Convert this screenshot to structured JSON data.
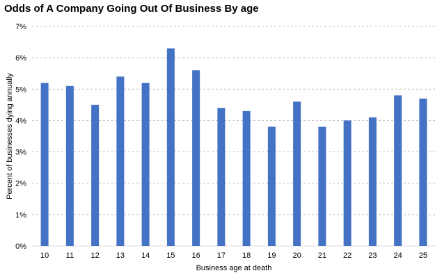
{
  "chart_data": {
    "type": "bar",
    "title": "Odds of A Company Going Out Of Business By age",
    "xlabel": "Business age at death",
    "ylabel": "Percent of businesses dying annually",
    "categories": [
      "10",
      "11",
      "12",
      "13",
      "14",
      "15",
      "16",
      "17",
      "18",
      "19",
      "20",
      "21",
      "22",
      "23",
      "24",
      "25"
    ],
    "values": [
      5.2,
      5.1,
      4.5,
      5.4,
      5.2,
      6.3,
      5.6,
      4.4,
      4.3,
      3.8,
      4.6,
      3.8,
      4.0,
      4.1,
      4.8,
      4.7
    ],
    "ylim": [
      0,
      7
    ],
    "yticks": [
      "0%",
      "1%",
      "2%",
      "3%",
      "4%",
      "5%",
      "6%",
      "7%"
    ],
    "grid": "horizontal dashed",
    "legend": "none",
    "colors": {
      "bar": "#4472C4",
      "grid": "#BFBFBF",
      "axis": "#D9D9D9"
    }
  }
}
